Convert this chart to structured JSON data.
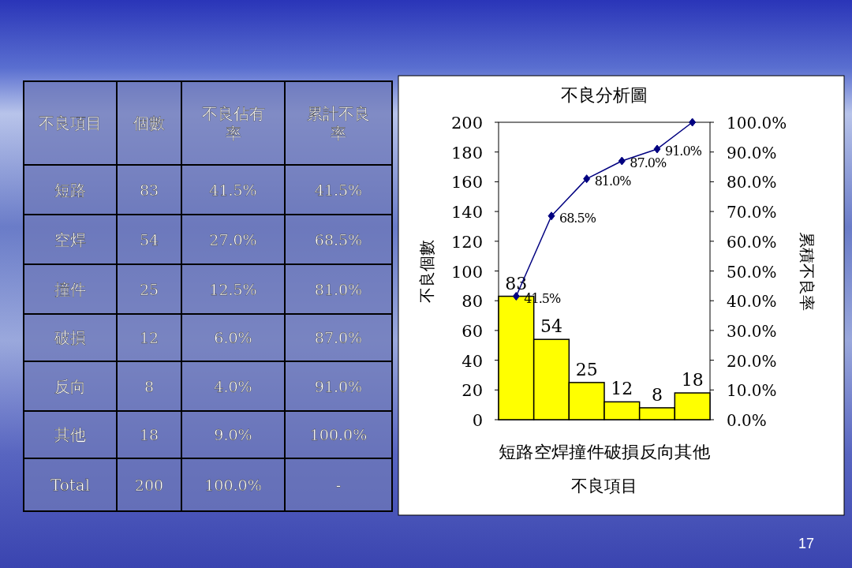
{
  "chart_data": [
    {
      "type": "other",
      "xlabel": "不良項目",
      "categories": [
        "短路",
        "空焊",
        "撞件",
        "破損",
        "反向",
        "其他",
        "Total"
      ],
      "series": [
        {
          "name": "個數",
          "values": [
            83,
            54,
            25,
            12,
            8,
            18,
            200
          ],
          "value_labels": [
            "83",
            "54",
            "25",
            "12",
            "8",
            "18",
            "200"
          ]
        },
        {
          "name": "不良佔有率",
          "values": [
            41.5,
            27.0,
            12.5,
            6.0,
            4.0,
            9.0,
            100.0
          ],
          "value_labels": [
            "41.5%",
            "27.0%",
            "12.5%",
            "6.0%",
            "4.0%",
            "9.0%",
            "100.0%"
          ]
        },
        {
          "name": "累計不良率",
          "values": [
            41.5,
            68.5,
            81.0,
            87.0,
            91.0,
            100.0,
            null
          ],
          "value_labels": [
            "41.5%",
            "68.5%",
            "81.0%",
            "87.0%",
            "91.0%",
            "100.0%",
            "-"
          ]
        }
      ],
      "annotations": [
        "17"
      ]
    },
    {
      "type": "bar",
      "title": "不良分析圖",
      "xlabel": "不良項目",
      "ylabel": "不良個數",
      "y2label": "累積不良率",
      "categories": [
        "短路",
        "空焊",
        "撞件",
        "破損",
        "反向",
        "其他"
      ],
      "series": [
        {
          "type": "bar",
          "color": "#ffff00",
          "values": [
            83,
            54,
            25,
            12,
            8,
            18
          ],
          "value_labels": [
            "83",
            "54",
            "25",
            "12",
            "8",
            "18"
          ]
        },
        {
          "type": "line",
          "axis": "y2",
          "color": "#000080",
          "marker": "diamond",
          "values": [
            41.5,
            68.5,
            81.0,
            87.0,
            91.0,
            100.0
          ],
          "value_labels": [
            "41.5%",
            "68.5%",
            "81.0%",
            "87.0%",
            "91.0%",
            null
          ]
        }
      ],
      "ylim": [
        0,
        200
      ],
      "yticks": [
        0,
        20,
        40,
        60,
        80,
        100,
        120,
        140,
        160,
        180,
        200
      ],
      "y2lim": [
        0,
        100
      ],
      "y2ticks": [
        {
          "value": 0,
          "label": "0.0%"
        },
        {
          "value": 10,
          "label": "10.0%"
        },
        {
          "value": 20,
          "label": "20.0%"
        },
        {
          "value": 30,
          "label": "30.0%"
        },
        {
          "value": 40,
          "label": "40.0%"
        },
        {
          "value": 50,
          "label": "50.0%"
        },
        {
          "value": 60,
          "label": "60.0%"
        },
        {
          "value": 70,
          "label": "70.0%"
        },
        {
          "value": 80,
          "label": "80.0%"
        },
        {
          "value": 90,
          "label": "90.0%"
        },
        {
          "value": 100,
          "label": "100.0%"
        }
      ]
    }
  ]
}
